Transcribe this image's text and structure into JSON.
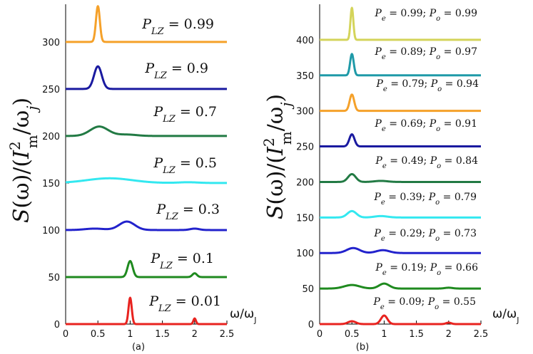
{
  "chart_data": [
    {
      "type": "line",
      "panel_label": "(a)",
      "ylabel": "S(ω)/(I_m^2/ω_j)",
      "xlabel_text": "ω/ω",
      "xlabel_sub": "J",
      "xlim": [
        0,
        2.5
      ],
      "ylim": [
        0,
        340
      ],
      "xticks": [
        "0",
        "0.5",
        "1",
        "1.5",
        "2",
        "2.5"
      ],
      "yticks": [
        "0",
        "50",
        "100",
        "150",
        "200",
        "250",
        "300"
      ],
      "series": [
        {
          "name": "P_LZ = 0.01",
          "var": "P",
          "sub": "LZ",
          "eq": " = 0.01",
          "color": "#e8231f",
          "offset": 0,
          "peaks": [
            {
              "x": 1.0,
              "h": 28,
              "w": 0.025
            },
            {
              "x": 2.0,
              "h": 6,
              "w": 0.02
            }
          ]
        },
        {
          "name": "P_LZ = 0.1",
          "var": "P",
          "sub": "LZ",
          "eq": " = 0.1",
          "color": "#1f8a1f",
          "offset": 50,
          "peaks": [
            {
              "x": 1.0,
              "h": 17,
              "w": 0.04
            },
            {
              "x": 2.0,
              "h": 4,
              "w": 0.035
            }
          ]
        },
        {
          "name": "P_LZ = 0.3",
          "var": "P",
          "sub": "LZ",
          "eq": " = 0.3",
          "color": "#2222cc",
          "offset": 100,
          "peaks": [
            {
              "x": 0.95,
              "h": 9,
              "w": 0.12
            },
            {
              "x": 0.45,
              "h": 1.5,
              "w": 0.15
            },
            {
              "x": 2.0,
              "h": 1.5,
              "w": 0.07
            }
          ]
        },
        {
          "name": "P_LZ = 0.5",
          "var": "P",
          "sub": "LZ",
          "eq": " = 0.5",
          "color": "#33e8f0",
          "offset": 150,
          "peaks": [
            {
              "x": 0.68,
              "h": 5,
              "w": 0.35
            },
            {
              "x": 1.9,
              "h": 0.8,
              "w": 0.15
            }
          ]
        },
        {
          "name": "P_LZ = 0.7",
          "var": "P",
          "sub": "LZ",
          "eq": " = 0.7",
          "color": "#227a44",
          "offset": 200,
          "peaks": [
            {
              "x": 0.52,
              "h": 10,
              "w": 0.14
            },
            {
              "x": 0.95,
              "h": 1.5,
              "w": 0.15
            }
          ]
        },
        {
          "name": "P_LZ = 0.9",
          "var": "P",
          "sub": "LZ",
          "eq": " = 0.9",
          "color": "#1a1aa0",
          "offset": 250,
          "peaks": [
            {
              "x": 0.5,
              "h": 24,
              "w": 0.06
            }
          ]
        },
        {
          "name": "P_LZ = 0.99",
          "var": "P",
          "sub": "LZ",
          "eq": " = 0.99",
          "color": "#f5a12a",
          "offset": 300,
          "peaks": [
            {
              "x": 0.5,
              "h": 38,
              "w": 0.03
            }
          ]
        }
      ]
    },
    {
      "type": "line",
      "panel_label": "(b)",
      "ylabel": "S(ω)/(I_m^2/ω_j)",
      "xlabel_text": "ω/ω",
      "xlabel_sub": "J",
      "xlim": [
        0,
        2.5
      ],
      "ylim": [
        0,
        450
      ],
      "xticks": [
        "0",
        "0.5",
        "1",
        "1.5",
        "2",
        "2.5"
      ],
      "yticks": [
        "0",
        "50",
        "100",
        "150",
        "200",
        "250",
        "300",
        "350",
        "400"
      ],
      "series": [
        {
          "name": "P_e = 0.09; P_o = 0.55",
          "label_parts": [
            [
              "P",
              "e",
              " = 0.09; "
            ],
            [
              "P",
              "o",
              " = 0.55"
            ]
          ],
          "color": "#e8231f",
          "offset": 0,
          "peaks": [
            {
              "x": 0.5,
              "h": 4,
              "w": 0.06
            },
            {
              "x": 1.0,
              "h": 12,
              "w": 0.05
            },
            {
              "x": 2.0,
              "h": 2,
              "w": 0.04
            }
          ]
        },
        {
          "name": "P_e = 0.19; P_o = 0.66",
          "label_parts": [
            [
              "P",
              "e",
              " = 0.19; "
            ],
            [
              "P",
              "o",
              " = 0.66"
            ]
          ],
          "color": "#1f8a1f",
          "offset": 50,
          "peaks": [
            {
              "x": 0.5,
              "h": 5,
              "w": 0.12
            },
            {
              "x": 1.0,
              "h": 7,
              "w": 0.08
            },
            {
              "x": 2.0,
              "h": 1.2,
              "w": 0.06
            }
          ]
        },
        {
          "name": "P_e = 0.29; P_o = 0.73",
          "label_parts": [
            [
              "P",
              "e",
              " = 0.29; "
            ],
            [
              "P",
              "o",
              " = 0.73"
            ]
          ],
          "color": "#2222cc",
          "offset": 100,
          "peaks": [
            {
              "x": 0.52,
              "h": 7,
              "w": 0.1
            },
            {
              "x": 0.98,
              "h": 4,
              "w": 0.1
            }
          ]
        },
        {
          "name": "P_e = 0.39; P_o = 0.79",
          "label_parts": [
            [
              "P",
              "e",
              " = 0.39; "
            ],
            [
              "P",
              "o",
              " = 0.79"
            ]
          ],
          "color": "#33e8f0",
          "offset": 150,
          "peaks": [
            {
              "x": 0.5,
              "h": 9,
              "w": 0.07
            },
            {
              "x": 0.95,
              "h": 2,
              "w": 0.1
            }
          ]
        },
        {
          "name": "P_e = 0.49; P_o = 0.84",
          "label_parts": [
            [
              "P",
              "e",
              " = 0.49; "
            ],
            [
              "P",
              "o",
              " = 0.84"
            ]
          ],
          "color": "#227a44",
          "offset": 200,
          "peaks": [
            {
              "x": 0.5,
              "h": 11,
              "w": 0.06
            },
            {
              "x": 0.95,
              "h": 1.5,
              "w": 0.1
            }
          ]
        },
        {
          "name": "P_e = 0.69; P_o = 0.91",
          "label_parts": [
            [
              "P",
              "e",
              " = 0.69; "
            ],
            [
              "P",
              "o",
              " = 0.91"
            ]
          ],
          "color": "#1a1aa0",
          "offset": 250,
          "peaks": [
            {
              "x": 0.5,
              "h": 17,
              "w": 0.04
            }
          ]
        },
        {
          "name": "P_e = 0.79; P_o = 0.94",
          "label_parts": [
            [
              "P",
              "e",
              " = 0.79; "
            ],
            [
              "P",
              "o",
              " = 0.94"
            ]
          ],
          "color": "#f5a12a",
          "offset": 300,
          "peaks": [
            {
              "x": 0.5,
              "h": 23,
              "w": 0.035
            }
          ]
        },
        {
          "name": "P_e = 0.89; P_o = 0.97",
          "label_parts": [
            [
              "P",
              "e",
              " = 0.89; "
            ],
            [
              "P",
              "o",
              " = 0.97"
            ]
          ],
          "color": "#1f9aa8",
          "offset": 350,
          "peaks": [
            {
              "x": 0.5,
              "h": 30,
              "w": 0.028
            }
          ]
        },
        {
          "name": "P_e = 0.99; P_o = 0.99",
          "label_parts": [
            [
              "P",
              "e",
              " = 0.99; "
            ],
            [
              "P",
              "o",
              " = 0.99"
            ]
          ],
          "color": "#d4d45a",
          "offset": 400,
          "peaks": [
            {
              "x": 0.5,
              "h": 45,
              "w": 0.022
            }
          ]
        }
      ]
    }
  ]
}
